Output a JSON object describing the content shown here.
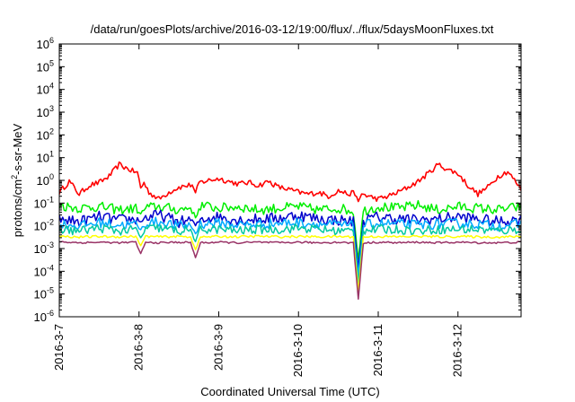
{
  "chart_data": {
    "type": "line",
    "title": "/data/run/goesPlots/archive/2016-03-12/19:00/flux/../flux/5daysMoonFluxes.txt",
    "xlabel": "Coordinated Universal Time (UTC)",
    "ylabel": "protons/cm²-s-sr-MeV",
    "ylabel_parts": {
      "pre": "protons/cm",
      "sup": "2",
      "post": "-s-sr-MeV"
    },
    "y_scale": "log",
    "ylim": [
      1e-06,
      1000000.0
    ],
    "y_ticks": [
      {
        "base": "10",
        "exp": "-6",
        "value": 1e-06
      },
      {
        "base": "10",
        "exp": "-5",
        "value": 1e-05
      },
      {
        "base": "10",
        "exp": "-4",
        "value": 0.0001
      },
      {
        "base": "10",
        "exp": "-3",
        "value": 0.001
      },
      {
        "base": "10",
        "exp": "-2",
        "value": 0.01
      },
      {
        "base": "10",
        "exp": "-1",
        "value": 0.1
      },
      {
        "base": "10",
        "exp": "0",
        "value": 1
      },
      {
        "base": "10",
        "exp": "1",
        "value": 10
      },
      {
        "base": "10",
        "exp": "2",
        "value": 100
      },
      {
        "base": "10",
        "exp": "3",
        "value": 1000
      },
      {
        "base": "10",
        "exp": "4",
        "value": 10000
      },
      {
        "base": "10",
        "exp": "5",
        "value": 100000
      },
      {
        "base": "10",
        "exp": "6",
        "value": 1000000
      }
    ],
    "xlim": [
      "2016-03-07",
      "2016-03-12T19:00"
    ],
    "x_ticks": [
      {
        "label": "2016-3-7",
        "value": "2016-03-07"
      },
      {
        "label": "2016-3-8",
        "value": "2016-03-08"
      },
      {
        "label": "2016-3-9",
        "value": "2016-03-09"
      },
      {
        "label": "2016-3-10",
        "value": "2016-03-10"
      },
      {
        "label": "2016-3-11",
        "value": "2016-03-11"
      },
      {
        "label": "2016-3-12",
        "value": "2016-03-12"
      }
    ],
    "grid": false,
    "legend": "none",
    "series": [
      {
        "color": "#ff0000",
        "x": [
          "2016-03-07T00:00",
          "2016-03-07T03:00",
          "2016-03-07T06:00",
          "2016-03-07T09:00",
          "2016-03-07T12:00",
          "2016-03-07T15:00",
          "2016-03-07T18:00",
          "2016-03-07T21:00",
          "2016-03-08T00:00",
          "2016-03-08T03:00",
          "2016-03-08T06:00",
          "2016-03-08T09:00",
          "2016-03-08T12:00",
          "2016-03-08T15:00",
          "2016-03-08T18:00",
          "2016-03-08T21:00",
          "2016-03-09T00:00",
          "2016-03-09T03:00",
          "2016-03-09T06:00",
          "2016-03-09T09:00",
          "2016-03-09T12:00",
          "2016-03-09T15:00",
          "2016-03-09T18:00",
          "2016-03-09T21:00",
          "2016-03-10T00:00",
          "2016-03-10T03:00",
          "2016-03-10T06:00",
          "2016-03-10T09:00",
          "2016-03-10T12:00",
          "2016-03-10T15:00",
          "2016-03-10T18:00",
          "2016-03-10T21:00",
          "2016-03-11T00:00",
          "2016-03-11T03:00",
          "2016-03-11T06:00",
          "2016-03-11T09:00",
          "2016-03-11T12:00",
          "2016-03-11T15:00",
          "2016-03-11T18:00",
          "2016-03-11T21:00",
          "2016-03-12T00:00",
          "2016-03-12T03:00",
          "2016-03-12T06:00",
          "2016-03-12T09:00",
          "2016-03-12T12:00",
          "2016-03-12T15:00",
          "2016-03-12T19:00"
        ],
        "y": [
          0.3,
          0.9,
          0.25,
          0.6,
          0.8,
          1.5,
          5.0,
          3.0,
          2.0,
          0.3,
          0.15,
          0.3,
          0.5,
          0.6,
          0.8,
          1.0,
          1.2,
          0.9,
          0.7,
          0.8,
          0.6,
          0.9,
          0.5,
          0.4,
          0.3,
          0.25,
          0.3,
          0.2,
          0.35,
          0.25,
          0.3,
          0.2,
          0.15,
          0.2,
          0.3,
          0.5,
          0.9,
          2.0,
          5.0,
          3.0,
          2.0,
          0.6,
          0.25,
          0.5,
          1.5,
          2.5,
          0.4
        ]
      },
      {
        "color": "#00ee00",
        "x": [
          "2016-03-07T00:00",
          "2016-03-07T06:00",
          "2016-03-07T12:00",
          "2016-03-07T18:00",
          "2016-03-08T00:00",
          "2016-03-08T06:00",
          "2016-03-08T12:00",
          "2016-03-08T18:00",
          "2016-03-09T00:00",
          "2016-03-09T06:00",
          "2016-03-09T12:00",
          "2016-03-09T18:00",
          "2016-03-10T00:00",
          "2016-03-10T06:00",
          "2016-03-10T12:00",
          "2016-03-10T18:00",
          "2016-03-11T00:00",
          "2016-03-11T06:00",
          "2016-03-11T12:00",
          "2016-03-11T18:00",
          "2016-03-12T00:00",
          "2016-03-12T06:00",
          "2016-03-12T12:00",
          "2016-03-12T19:00"
        ],
        "y": [
          0.08,
          0.06,
          0.07,
          0.05,
          0.06,
          0.07,
          0.05,
          0.08,
          0.06,
          0.07,
          0.05,
          0.06,
          0.07,
          0.05,
          0.06,
          0.04,
          0.07,
          0.06,
          0.08,
          0.05,
          0.07,
          0.06,
          0.05,
          0.07
        ]
      },
      {
        "color": "#0000cc",
        "x": [
          "2016-03-07T00:00",
          "2016-03-07T06:00",
          "2016-03-07T12:00",
          "2016-03-07T18:00",
          "2016-03-08T00:00",
          "2016-03-08T06:00",
          "2016-03-08T12:00",
          "2016-03-08T18:00",
          "2016-03-09T00:00",
          "2016-03-09T06:00",
          "2016-03-09T12:00",
          "2016-03-09T18:00",
          "2016-03-10T00:00",
          "2016-03-10T06:00",
          "2016-03-10T12:00",
          "2016-03-10T18:00",
          "2016-03-11T00:00",
          "2016-03-11T06:00",
          "2016-03-11T12:00",
          "2016-03-11T18:00",
          "2016-03-12T00:00",
          "2016-03-12T06:00",
          "2016-03-12T12:00",
          "2016-03-12T19:00"
        ],
        "y": [
          0.02,
          0.015,
          0.025,
          0.018,
          0.02,
          0.03,
          0.015,
          0.02,
          0.025,
          0.018,
          0.02,
          0.022,
          0.03,
          0.02,
          0.018,
          0.015,
          0.025,
          0.02,
          0.018,
          0.02,
          0.025,
          0.02,
          0.015,
          0.02
        ]
      },
      {
        "color": "#00aaff",
        "x": [
          "2016-03-07T00:00",
          "2016-03-07T06:00",
          "2016-03-07T12:00",
          "2016-03-07T18:00",
          "2016-03-08T00:00",
          "2016-03-08T06:00",
          "2016-03-08T12:00",
          "2016-03-08T18:00",
          "2016-03-09T00:00",
          "2016-03-09T06:00",
          "2016-03-09T12:00",
          "2016-03-09T18:00",
          "2016-03-10T00:00",
          "2016-03-10T06:00",
          "2016-03-10T12:00",
          "2016-03-10T18:00",
          "2016-03-11T00:00",
          "2016-03-11T06:00",
          "2016-03-11T12:00",
          "2016-03-11T18:00",
          "2016-03-12T00:00",
          "2016-03-12T06:00",
          "2016-03-12T12:00",
          "2016-03-12T19:00"
        ],
        "y": [
          0.012,
          0.01,
          0.014,
          0.011,
          0.012,
          0.015,
          0.01,
          0.012,
          0.013,
          0.011,
          0.012,
          0.013,
          0.014,
          0.012,
          0.011,
          0.01,
          0.013,
          0.012,
          0.011,
          0.012,
          0.013,
          0.012,
          0.01,
          0.012
        ]
      },
      {
        "color": "#00c8a0",
        "x": [
          "2016-03-07T00:00",
          "2016-03-07T06:00",
          "2016-03-07T12:00",
          "2016-03-07T18:00",
          "2016-03-08T00:00",
          "2016-03-08T06:00",
          "2016-03-08T12:00",
          "2016-03-08T18:00",
          "2016-03-09T00:00",
          "2016-03-09T06:00",
          "2016-03-09T12:00",
          "2016-03-09T18:00",
          "2016-03-10T00:00",
          "2016-03-10T06:00",
          "2016-03-10T12:00",
          "2016-03-10T18:00",
          "2016-03-11T00:00",
          "2016-03-11T06:00",
          "2016-03-11T12:00",
          "2016-03-11T18:00",
          "2016-03-12T00:00",
          "2016-03-12T06:00",
          "2016-03-12T12:00",
          "2016-03-12T19:00"
        ],
        "y": [
          0.007,
          0.006,
          0.008,
          0.006,
          0.007,
          0.008,
          0.006,
          0.007,
          0.007,
          0.006,
          0.007,
          0.007,
          0.008,
          0.007,
          0.006,
          0.006,
          0.007,
          0.007,
          0.006,
          0.007,
          0.007,
          0.007,
          0.006,
          0.007
        ]
      },
      {
        "color": "#ffff00",
        "x": [
          "2016-03-07T00:00",
          "2016-03-07T06:00",
          "2016-03-07T12:00",
          "2016-03-07T18:00",
          "2016-03-08T00:00",
          "2016-03-08T06:00",
          "2016-03-08T12:00",
          "2016-03-08T18:00",
          "2016-03-09T00:00",
          "2016-03-09T06:00",
          "2016-03-09T12:00",
          "2016-03-09T18:00",
          "2016-03-10T00:00",
          "2016-03-10T06:00",
          "2016-03-10T12:00",
          "2016-03-10T18:00",
          "2016-03-11T00:00",
          "2016-03-11T06:00",
          "2016-03-11T12:00",
          "2016-03-11T18:00",
          "2016-03-12T00:00",
          "2016-03-12T06:00",
          "2016-03-12T12:00",
          "2016-03-12T19:00"
        ],
        "y": [
          0.0035,
          0.0032,
          0.0034,
          0.0033,
          0.0035,
          0.0033,
          0.0034,
          0.0032,
          0.0034,
          0.0033,
          0.0035,
          0.0033,
          0.0034,
          0.0033,
          0.0034,
          0.0032,
          0.0034,
          0.0033,
          0.0035,
          0.0033,
          0.0034,
          0.0033,
          0.0032,
          0.0034
        ]
      },
      {
        "color": "#993366",
        "x": [
          "2016-03-07T00:00",
          "2016-03-07T06:00",
          "2016-03-07T12:00",
          "2016-03-07T18:00",
          "2016-03-08T00:00",
          "2016-03-08T06:00",
          "2016-03-08T12:00",
          "2016-03-08T18:00",
          "2016-03-09T00:00",
          "2016-03-09T06:00",
          "2016-03-09T12:00",
          "2016-03-09T18:00",
          "2016-03-10T00:00",
          "2016-03-10T06:00",
          "2016-03-10T12:00",
          "2016-03-10T18:00",
          "2016-03-11T00:00",
          "2016-03-11T06:00",
          "2016-03-11T12:00",
          "2016-03-11T18:00",
          "2016-03-12T00:00",
          "2016-03-12T06:00",
          "2016-03-12T12:00",
          "2016-03-12T19:00"
        ],
        "y": [
          0.002,
          0.0018,
          0.0019,
          0.0018,
          0.0019,
          0.0018,
          0.0019,
          0.0018,
          0.0019,
          0.0018,
          0.0019,
          0.0018,
          0.0019,
          0.0018,
          0.0019,
          0.0017,
          0.0019,
          0.0018,
          0.0019,
          0.0018,
          0.0019,
          0.0018,
          0.0018,
          0.0019
        ]
      }
    ],
    "dips": [
      {
        "x": "2016-03-08T00:30",
        "min": 0.0006
      },
      {
        "x": "2016-03-08T17:00",
        "min": 0.0004
      },
      {
        "x": "2016-03-10T18:00",
        "min": 6e-06
      }
    ]
  }
}
